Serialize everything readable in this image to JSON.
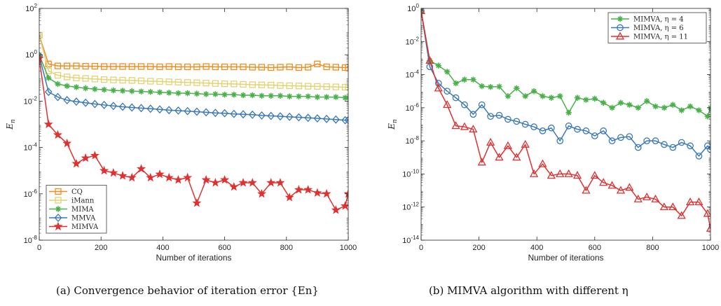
{
  "chart_data": [
    {
      "type": "line",
      "yscale": "log",
      "xlim": [
        0,
        1000
      ],
      "ylim": [
        1e-08,
        100
      ],
      "xticks": [
        "0",
        "200",
        "400",
        "600",
        "800",
        "1000"
      ],
      "yticks": [
        {
          "base": "10",
          "exp": "2"
        },
        {
          "base": "10",
          "exp": "0"
        },
        {
          "base": "10",
          "exp": "-2"
        },
        {
          "base": "10",
          "exp": "-4"
        },
        {
          "base": "10",
          "exp": "-6"
        },
        {
          "base": "10",
          "exp": "-8"
        }
      ],
      "xlabel": "Number of iterations",
      "ylabel": "En",
      "legend_position": "bottom-left",
      "caption": "(a)  Convergence behavior of iteration error {En}",
      "series": [
        {
          "name": "CQ",
          "color": "#F08C1E",
          "marker": "square",
          "x": [
            0,
            30,
            60,
            90,
            120,
            150,
            180,
            210,
            240,
            270,
            300,
            330,
            360,
            390,
            420,
            450,
            480,
            510,
            540,
            570,
            600,
            630,
            660,
            690,
            720,
            750,
            780,
            810,
            840,
            870,
            900,
            930,
            960,
            990,
            1000
          ],
          "y": [
            7,
            0.4,
            0.33,
            0.33,
            0.33,
            0.32,
            0.32,
            0.31,
            0.31,
            0.31,
            0.31,
            0.31,
            0.31,
            0.3,
            0.31,
            0.3,
            0.3,
            0.3,
            0.31,
            0.3,
            0.3,
            0.3,
            0.3,
            0.29,
            0.29,
            0.28,
            0.29,
            0.3,
            0.28,
            0.29,
            0.4,
            0.3,
            0.29,
            0.28,
            0.28
          ]
        },
        {
          "name": "iMann",
          "color": "#E3D273",
          "marker": "square",
          "x": [
            0,
            30,
            60,
            90,
            120,
            150,
            180,
            210,
            240,
            270,
            300,
            330,
            360,
            390,
            420,
            450,
            480,
            510,
            540,
            570,
            600,
            630,
            660,
            690,
            720,
            750,
            780,
            810,
            840,
            870,
            900,
            930,
            960,
            990,
            1000
          ],
          "y": [
            7,
            0.2,
            0.13,
            0.11,
            0.1,
            0.095,
            0.09,
            0.085,
            0.082,
            0.08,
            0.078,
            0.075,
            0.072,
            0.07,
            0.068,
            0.066,
            0.064,
            0.062,
            0.06,
            0.058,
            0.056,
            0.055,
            0.053,
            0.051,
            0.05,
            0.049,
            0.047,
            0.046,
            0.045,
            0.044,
            0.043,
            0.042,
            0.041,
            0.04,
            0.04
          ]
        },
        {
          "name": "MIMA",
          "color": "#49B04A",
          "marker": "asterisk",
          "x": [
            0,
            30,
            60,
            90,
            120,
            150,
            180,
            210,
            240,
            270,
            300,
            330,
            360,
            390,
            420,
            450,
            480,
            510,
            540,
            570,
            600,
            630,
            660,
            690,
            720,
            750,
            780,
            810,
            840,
            870,
            900,
            930,
            960,
            990,
            1000
          ],
          "y": [
            1.0,
            0.1,
            0.055,
            0.045,
            0.04,
            0.036,
            0.033,
            0.031,
            0.029,
            0.028,
            0.027,
            0.026,
            0.025,
            0.024,
            0.023,
            0.022,
            0.022,
            0.021,
            0.02,
            0.02,
            0.019,
            0.019,
            0.018,
            0.018,
            0.017,
            0.017,
            0.017,
            0.016,
            0.016,
            0.016,
            0.015,
            0.015,
            0.015,
            0.014,
            0.014
          ]
        },
        {
          "name": "MMVA",
          "color": "#3A78B8",
          "marker": "diamond",
          "x": [
            0,
            30,
            60,
            90,
            120,
            150,
            180,
            210,
            240,
            270,
            300,
            330,
            360,
            390,
            420,
            450,
            480,
            510,
            540,
            570,
            600,
            630,
            660,
            690,
            720,
            750,
            780,
            810,
            840,
            870,
            900,
            930,
            960,
            990,
            1000
          ],
          "y": [
            0.9,
            0.025,
            0.015,
            0.011,
            0.0095,
            0.0085,
            0.0075,
            0.0068,
            0.0062,
            0.0057,
            0.0053,
            0.005,
            0.0047,
            0.0044,
            0.0041,
            0.0039,
            0.0037,
            0.0035,
            0.0033,
            0.0031,
            0.003,
            0.0028,
            0.0027,
            0.0026,
            0.0024,
            0.0023,
            0.0022,
            0.0021,
            0.002,
            0.0019,
            0.0018,
            0.0017,
            0.0016,
            0.0015,
            0.0015
          ]
        },
        {
          "name": "MIMVA",
          "color": "#E03030",
          "marker": "star",
          "x": [
            0,
            30,
            60,
            90,
            120,
            150,
            180,
            210,
            240,
            270,
            300,
            330,
            360,
            390,
            420,
            450,
            480,
            510,
            540,
            570,
            600,
            630,
            660,
            690,
            720,
            750,
            780,
            810,
            840,
            870,
            900,
            930,
            960,
            990,
            1000
          ],
          "y": [
            0.7,
            0.001,
            0.00035,
            0.00015,
            2e-05,
            3.5e-05,
            4.5e-05,
            1e-05,
            8e-06,
            6e-06,
            5e-06,
            1.2e-05,
            5e-06,
            7e-06,
            5e-06,
            4e-06,
            5e-06,
            4e-07,
            4e-06,
            3e-06,
            4e-06,
            2e-06,
            3e-06,
            3e-06,
            1e-06,
            3e-06,
            3e-06,
            7e-07,
            1.5e-06,
            1.5e-06,
            1.1e-06,
            1e-06,
            2e-07,
            3e-07,
            1e-06
          ]
        }
      ]
    },
    {
      "type": "line",
      "yscale": "log",
      "xlim": [
        0,
        1000
      ],
      "ylim": [
        1e-14,
        1
      ],
      "xticks": [
        "0",
        "200",
        "400",
        "600",
        "800",
        "1000"
      ],
      "yticks": [
        {
          "base": "10",
          "exp": "0"
        },
        {
          "base": "10",
          "exp": "-2"
        },
        {
          "base": "10",
          "exp": "-4"
        },
        {
          "base": "10",
          "exp": "-6"
        },
        {
          "base": "10",
          "exp": "-8"
        },
        {
          "base": "10",
          "exp": "-10"
        },
        {
          "base": "10",
          "exp": "-12"
        },
        {
          "base": "10",
          "exp": "-14"
        }
      ],
      "xlabel": "Number of iterations",
      "ylabel": "En",
      "legend_position": "top-right",
      "caption": "(b)  MIMVA algorithm with different η",
      "series": [
        {
          "name": "MIMVA, η = 4",
          "color": "#49B04A",
          "marker": "asterisk",
          "x": [
            0,
            30,
            60,
            90,
            120,
            150,
            180,
            210,
            240,
            270,
            300,
            330,
            360,
            390,
            420,
            450,
            480,
            510,
            540,
            570,
            600,
            630,
            660,
            690,
            720,
            750,
            780,
            810,
            840,
            870,
            900,
            930,
            960,
            990,
            1000
          ],
          "y": [
            0.7,
            0.0007,
            0.00035,
            0.00015,
            3e-05,
            5e-05,
            5e-05,
            2e-05,
            1.8e-05,
            1.9e-05,
            5e-06,
            1.5e-05,
            5e-06,
            1e-05,
            5e-06,
            4e-06,
            5e-06,
            5e-07,
            4e-06,
            3e-06,
            3.5e-06,
            2e-06,
            1e-06,
            2e-06,
            1.5e-06,
            1e-06,
            2.5e-06,
            1.2e-06,
            1e-06,
            1.5e-06,
            7e-07,
            1.2e-06,
            7e-07,
            3e-07,
            1e-06
          ]
        },
        {
          "name": "MIMVA, η = 6",
          "color": "#3A78B8",
          "marker": "circle",
          "x": [
            0,
            30,
            60,
            90,
            120,
            150,
            180,
            210,
            240,
            270,
            300,
            330,
            360,
            390,
            420,
            450,
            480,
            510,
            540,
            570,
            600,
            630,
            660,
            690,
            720,
            750,
            780,
            810,
            840,
            870,
            900,
            930,
            960,
            990,
            1000
          ],
          "y": [
            0.7,
            0.0003,
            3e-05,
            1e-05,
            4e-06,
            1.5e-06,
            4e-07,
            1.5e-06,
            3e-07,
            3.5e-07,
            2e-07,
            1.5e-07,
            1e-07,
            7e-08,
            4e-08,
            6e-08,
            1e-08,
            8e-08,
            5e-08,
            4e-08,
            2e-08,
            4e-08,
            1e-08,
            1.6e-08,
            1.8e-08,
            4e-09,
            1e-08,
            1e-08,
            6e-09,
            4e-09,
            8e-09,
            5e-09,
            1.2e-09,
            5e-09,
            3e-09
          ]
        },
        {
          "name": "MIMVA, η = 11",
          "color": "#E03030",
          "marker": "triangle",
          "x": [
            0,
            30,
            60,
            90,
            120,
            150,
            180,
            210,
            240,
            270,
            300,
            330,
            360,
            390,
            420,
            450,
            480,
            510,
            540,
            570,
            600,
            630,
            660,
            690,
            720,
            750,
            780,
            810,
            840,
            870,
            900,
            930,
            960,
            990,
            1000
          ],
          "y": [
            0.7,
            0.0007,
            1.5e-05,
            1.5e-06,
            8e-08,
            7e-08,
            5e-08,
            5e-10,
            8e-09,
            1e-09,
            5e-09,
            1e-09,
            6e-09,
            1e-10,
            4e-10,
            8e-11,
            1e-10,
            1e-10,
            8e-11,
            1e-11,
            8e-11,
            3e-11,
            2e-11,
            1e-11,
            1.5e-11,
            3e-12,
            4e-12,
            3e-12,
            1e-12,
            1e-12,
            3e-13,
            2e-12,
            2e-12,
            4e-13,
            5e-14
          ]
        }
      ]
    }
  ]
}
